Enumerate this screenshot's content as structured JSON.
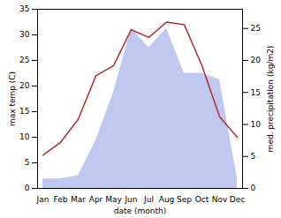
{
  "chart_data": {
    "type": "line",
    "xlabel": "date (month)",
    "ylabel": "max temp (C)",
    "y2label": "med. precipitation (kg/m2)",
    "categories": [
      "Jan",
      "Feb",
      "Mar",
      "Apr",
      "May",
      "Jun",
      "Jul",
      "Aug",
      "Sep",
      "Oct",
      "Nov",
      "Dec"
    ],
    "series": [
      {
        "type": "area",
        "axis": "y2",
        "color": "#c0c8f0",
        "values": [
          1.5,
          1.5,
          2.0,
          7.5,
          15.0,
          25.0,
          22.0,
          25.0,
          18.0,
          18.0,
          17.0,
          1.5
        ]
      },
      {
        "type": "line",
        "color": "#b03030",
        "values": [
          6.5,
          9.0,
          13.5,
          22.0,
          24.0,
          31.0,
          29.5,
          32.5,
          32.0,
          24.0,
          14.0,
          10.0
        ]
      }
    ],
    "ylim": [
      0,
      35
    ],
    "yticks": [
      0,
      5,
      10,
      15,
      20,
      25,
      30,
      35
    ],
    "y2lim": [
      0,
      28
    ],
    "y2ticks": [
      0,
      5,
      10,
      15,
      20,
      25
    ]
  }
}
